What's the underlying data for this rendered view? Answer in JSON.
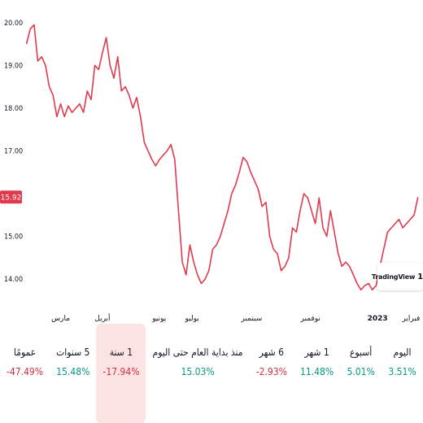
{
  "chart_data": {
    "type": "line",
    "y_ticks": [
      "20.00",
      "19.00",
      "18.00",
      "17.00",
      "16.00",
      "15.00",
      "14.00"
    ],
    "y_tick_values": [
      20,
      19,
      18,
      17,
      16,
      15,
      14
    ],
    "ylim": [
      13.3,
      20.3
    ],
    "x_ticks": [
      {
        "label": "مارس",
        "pos": 5.3,
        "bold": false
      },
      {
        "label": "أبريل",
        "pos": 11.4,
        "bold": false
      },
      {
        "label": "يونيو",
        "pos": 19.7,
        "bold": false
      },
      {
        "label": "يوليو",
        "pos": 24.5,
        "bold": false
      },
      {
        "label": "سبتمبر",
        "pos": 33.2,
        "bold": false
      },
      {
        "label": "نوفمبر",
        "pos": 41.8,
        "bold": false
      },
      {
        "label": "2023",
        "pos": 51.6,
        "bold": true
      },
      {
        "label": "فبراير",
        "pos": 56.5,
        "bold": false
      }
    ],
    "xlim": [
      0,
      58
    ],
    "current_price": 15.92,
    "current_price_label": "15.92",
    "line_color": "#e03a4e",
    "series": [
      {
        "values": [
          19.5,
          19.85,
          19.95,
          19.1,
          19.2,
          19.0,
          18.5,
          18.3,
          17.8,
          18.1,
          17.8,
          18.05,
          17.9,
          18.0,
          18.1,
          17.9,
          18.4,
          18.2,
          19.0,
          18.9,
          19.3,
          19.65,
          19.0,
          18.7,
          19.2,
          18.4,
          18.5,
          18.3,
          18.0,
          18.25,
          17.8,
          17.2,
          17.0,
          16.8,
          16.65,
          16.8,
          16.9,
          17.0,
          17.15,
          16.8,
          15.6,
          14.4,
          14.1,
          14.8,
          14.4,
          14.1,
          13.9,
          14.0,
          14.2,
          14.7,
          14.8,
          15.0,
          15.3,
          15.6,
          16.0,
          16.2,
          16.5,
          16.85,
          16.75,
          16.5,
          16.3,
          16.1,
          15.7,
          15.8,
          15.0,
          14.7,
          14.6,
          14.2,
          14.3,
          14.5,
          15.2,
          15.1,
          15.6,
          16.0,
          15.9,
          15.6,
          15.3,
          15.9,
          15.2,
          15.0,
          15.6,
          15.1,
          14.6,
          14.3,
          14.4,
          14.3,
          14.1,
          13.9,
          13.75,
          13.85,
          13.9,
          13.75,
          13.85,
          14.3,
          14.7,
          15.1,
          15.2,
          15.3,
          15.4,
          15.2,
          15.3,
          15.4,
          15.5,
          15.92
        ]
      }
    ]
  },
  "watermark": {
    "text": "TradingView",
    "mark": "17"
  },
  "periods": [
    {
      "label": "اليوم",
      "value": "3.51%",
      "positive": true,
      "selected": false
    },
    {
      "label": "أسبوع",
      "value": "5.01%",
      "positive": true,
      "selected": false
    },
    {
      "label": "1 شهر",
      "value": "11.48%",
      "positive": true,
      "selected": false
    },
    {
      "label": "6 شهر",
      "value": "2.93%-",
      "positive": false,
      "selected": false
    },
    {
      "label": "منذ بداية العام حتى اليوم",
      "value": "15.03%",
      "positive": true,
      "selected": false
    },
    {
      "label": "1 سنة",
      "value": "17.94%-",
      "positive": false,
      "selected": true
    },
    {
      "label": "5 سنوات",
      "value": "15.48%",
      "positive": true,
      "selected": false
    },
    {
      "label": "عمومًا",
      "value": "47.49%-",
      "positive": false,
      "selected": false
    }
  ]
}
